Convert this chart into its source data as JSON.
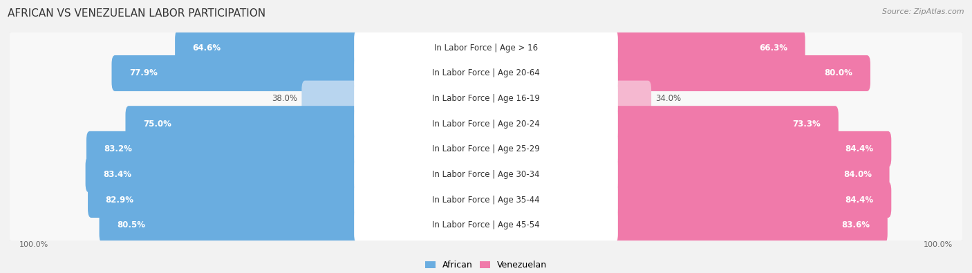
{
  "title": "AFRICAN VS VENEZUELAN LABOR PARTICIPATION",
  "source": "Source: ZipAtlas.com",
  "categories": [
    "In Labor Force | Age > 16",
    "In Labor Force | Age 20-64",
    "In Labor Force | Age 16-19",
    "In Labor Force | Age 20-24",
    "In Labor Force | Age 25-29",
    "In Labor Force | Age 30-34",
    "In Labor Force | Age 35-44",
    "In Labor Force | Age 45-54"
  ],
  "african_values": [
    64.6,
    77.9,
    38.0,
    75.0,
    83.2,
    83.4,
    82.9,
    80.5
  ],
  "venezuelan_values": [
    66.3,
    80.0,
    34.0,
    73.3,
    84.4,
    84.0,
    84.4,
    83.6
  ],
  "african_color_dark": "#6aade0",
  "african_color_light": "#b8d5ef",
  "venezuelan_color_dark": "#f07aaa",
  "venezuelan_color_light": "#f5b8d0",
  "background_color": "#f2f2f2",
  "row_bg_color": "#e4e4e4",
  "row_bg_inner": "#f8f8f8",
  "label_bg_color": "#ffffff",
  "max_val": 100.0,
  "title_fontsize": 11,
  "bar_fontsize": 8.5,
  "legend_fontsize": 9,
  "axis_fontsize": 8
}
